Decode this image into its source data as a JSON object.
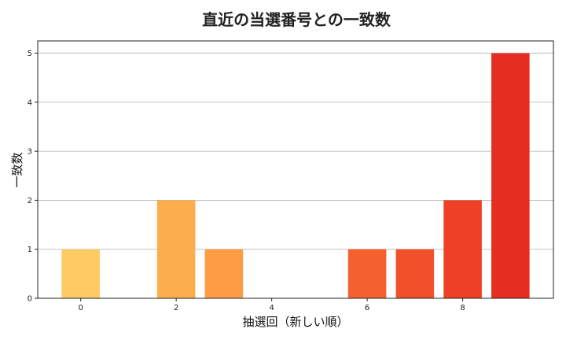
{
  "chart_data": {
    "type": "bar",
    "title": "直近の当選番号との一致数",
    "xlabel": "抽選回（新しい順）",
    "ylabel": "一致数",
    "x": [
      0,
      1,
      2,
      3,
      4,
      5,
      6,
      7,
      8,
      9
    ],
    "values": [
      1,
      0,
      2,
      1,
      0,
      0,
      1,
      1,
      2,
      5
    ],
    "bar_colors": [
      "#fdca63",
      "#fdbd5a",
      "#fdae4c",
      "#fc9d45",
      "#fb873d",
      "#f97133",
      "#f4612e",
      "#f1502b",
      "#ee4026",
      "#e52e20"
    ],
    "xticks": [
      0,
      2,
      4,
      6,
      8
    ],
    "yticks": [
      0,
      1,
      2,
      3,
      4,
      5
    ],
    "xlim": [
      -0.9,
      9.9
    ],
    "ylim": [
      0,
      5.25
    ],
    "grid": "y"
  }
}
